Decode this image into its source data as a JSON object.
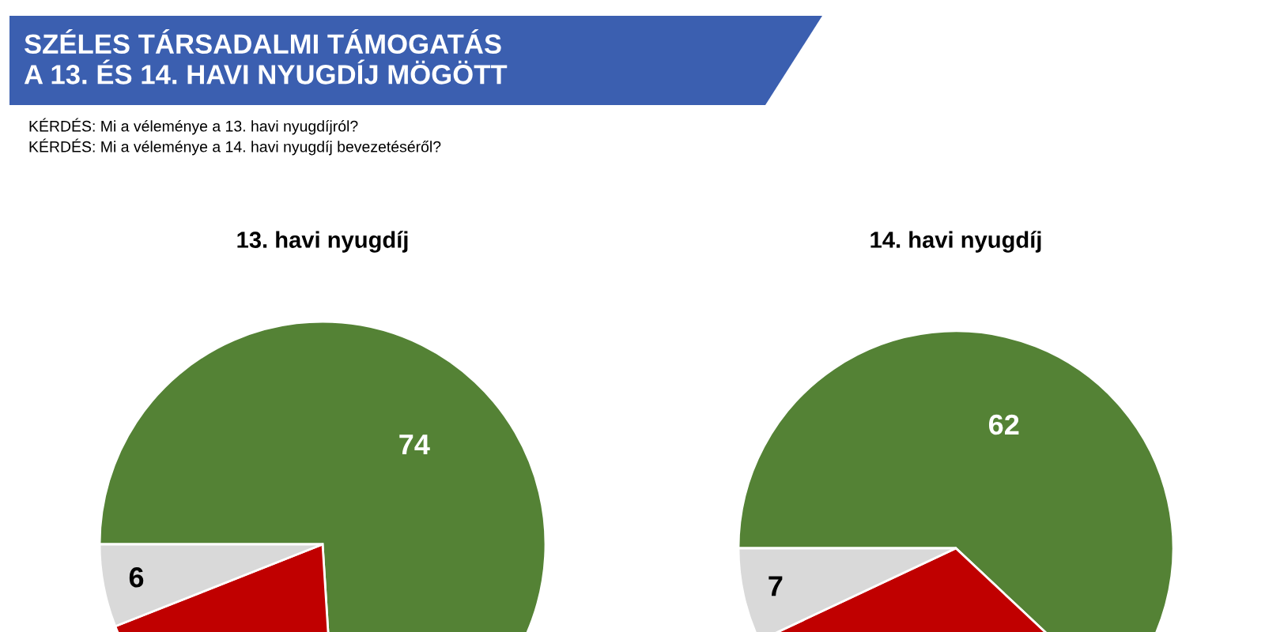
{
  "chart_data": [
    {
      "type": "pie",
      "title": "13. havi nyugdíj",
      "categories": [
        null,
        null,
        null
      ],
      "values": [
        74,
        20,
        6
      ],
      "colors": [
        "#548235",
        "#c00000",
        "#d9d9d9"
      ],
      "value_labels": [
        "74",
        null,
        "6"
      ],
      "annotations": [
        "SZÉLES TÁRSADALMI TÁMOGATÁS\nA 13. ÉS 14. HAVI NYUGDÍJ MÖGÖTT",
        "KÉRDÉS: Mi a véleménye a 13. havi nyugdíjról?",
        "KÉRDÉS: Mi a véleménye a 14. havi nyugdíj bevezetéséről?"
      ]
    },
    {
      "type": "pie",
      "title": "14. havi nyugdíj",
      "categories": [
        null,
        null,
        null
      ],
      "values": [
        62,
        31,
        7
      ],
      "colors": [
        "#548235",
        "#c00000",
        "#d9d9d9"
      ],
      "value_labels": [
        "62",
        null,
        "7"
      ]
    }
  ]
}
